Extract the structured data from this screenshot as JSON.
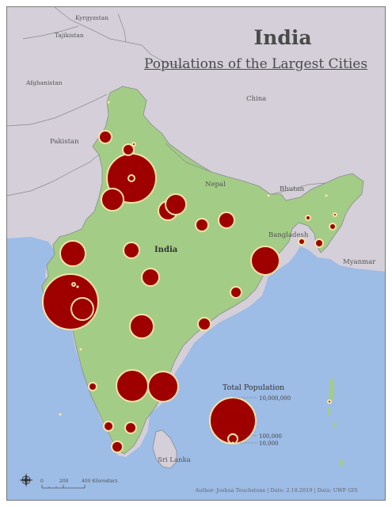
{
  "map": {
    "title": "India",
    "subtitle": "Populations of the Largest Cities",
    "country_labels": {
      "kyrgyzstan": "Kyrgyzstan",
      "tajikistan": "Tajikistan",
      "afghanistan": "Afghanistan",
      "pakistan": "Pakistan",
      "china": "China",
      "nepal": "Nepal",
      "bhutan": "Bhutan",
      "bangladesh": "Bangladesh",
      "myanmar": "Myanmar",
      "sri_lanka": "Sri Lanka",
      "india": "India"
    },
    "legend": {
      "title": "Total Population",
      "values": [
        "10,000,000",
        "100,000",
        "10,000"
      ]
    },
    "scale_bar": {
      "labels": [
        "0",
        "200",
        "400 Kilometers"
      ]
    },
    "credits": "Author: Joshua Touchstone | Date: 2.18.2019 | Data: UWF GIS",
    "colors": {
      "land_india": "#a3cc87",
      "land_other": "#d4cfd9",
      "water": "#9dbce6",
      "symbol_fill": "#9e0000",
      "symbol_outline": "#f6e3a5",
      "border": "#8c8c8c"
    }
  }
}
